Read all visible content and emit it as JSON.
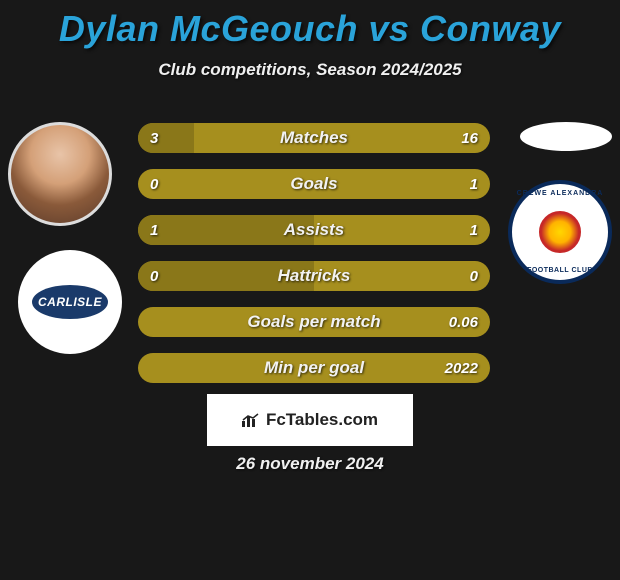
{
  "title": "Dylan McGeouch vs Conway",
  "subtitle": "Club competitions, Season 2024/2025",
  "date": "26 november 2024",
  "footer_brand": "FcTables.com",
  "club_left_label": "CARLISLE",
  "club_right_top": "CREWE ALEXANDRA",
  "club_right_bot": "FOOTBALL CLUB",
  "colors": {
    "title": "#2aa3d9",
    "bar_outer": "#a68f1e",
    "bar_inner": "#8a7719",
    "background": "#181818",
    "text": "#f0f0f0",
    "club_left_badge": "#1a3a6a",
    "club_right_ring": "#0a2a5a"
  },
  "bars": [
    {
      "label": "Matches",
      "left_val": "3",
      "right_val": "16",
      "left_pct": 15.8
    },
    {
      "label": "Goals",
      "left_val": "0",
      "right_val": "1",
      "left_pct": 0.0
    },
    {
      "label": "Assists",
      "left_val": "1",
      "right_val": "1",
      "left_pct": 50.0
    },
    {
      "label": "Hattricks",
      "left_val": "0",
      "right_val": "0",
      "left_pct": 50.0
    },
    {
      "label": "Goals per match",
      "left_val": "",
      "right_val": "0.06",
      "left_pct": 0.0
    },
    {
      "label": "Min per goal",
      "left_val": "",
      "right_val": "2022",
      "left_pct": 0.0
    }
  ]
}
